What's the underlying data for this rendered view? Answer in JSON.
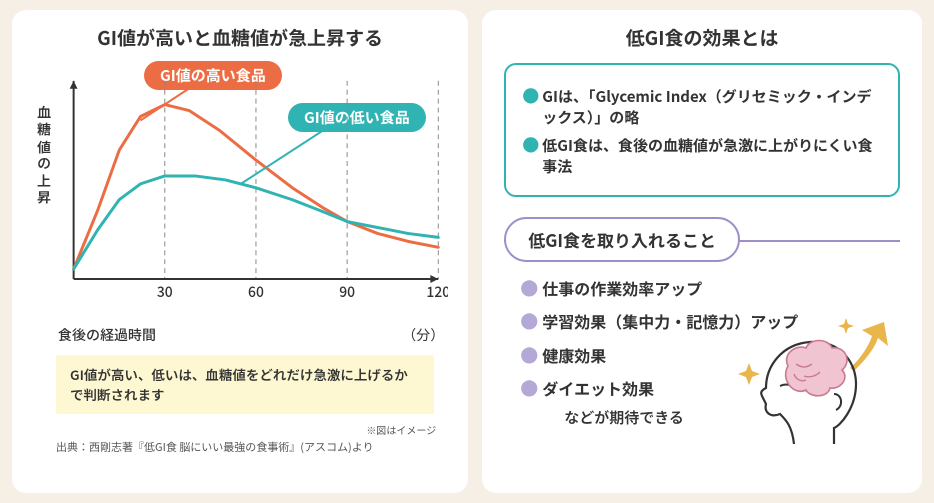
{
  "left": {
    "title": "GI値が高いと血糖値が急上昇する",
    "y_label": "血糖値の上昇",
    "x_label": "食後の経過時間",
    "x_unit": "（分）",
    "legend_high": "GI値の高い食品",
    "legend_low": "GI値の低い食品",
    "note": "GI値が高い、低いは、血糖値をどれだけ急激に上げるかで判断されます",
    "caption": "※図はイメージ",
    "source": "出典：西剛志著『低GI食 脳にいい最強の食事術』(アスコム)より",
    "chart": {
      "type": "line",
      "x_ticks": [
        30,
        60,
        90,
        120
      ],
      "x_range": [
        0,
        120
      ],
      "y_range": [
        0,
        100
      ],
      "grid_x": [
        30,
        60,
        90,
        120
      ],
      "grid_color": "#888888",
      "axis_color": "#333333",
      "background_color": "#ffffff",
      "series": [
        {
          "name": "high-gi",
          "color": "#ec6c44",
          "width": 3,
          "points": [
            [
              0,
              5
            ],
            [
              8,
              35
            ],
            [
              15,
              65
            ],
            [
              22,
              82
            ],
            [
              30,
              88
            ],
            [
              38,
              85
            ],
            [
              48,
              75
            ],
            [
              60,
              60
            ],
            [
              72,
              46
            ],
            [
              82,
              36
            ],
            [
              90,
              29
            ],
            [
              100,
              23
            ],
            [
              110,
              19
            ],
            [
              120,
              16
            ]
          ]
        },
        {
          "name": "low-gi",
          "color": "#2fb3b3",
          "width": 3,
          "points": [
            [
              0,
              5
            ],
            [
              8,
              25
            ],
            [
              15,
              40
            ],
            [
              22,
              48
            ],
            [
              30,
              52
            ],
            [
              40,
              52
            ],
            [
              50,
              50
            ],
            [
              60,
              46
            ],
            [
              72,
              40
            ],
            [
              82,
              34
            ],
            [
              90,
              29
            ],
            [
              100,
              26
            ],
            [
              110,
              23
            ],
            [
              120,
              21
            ]
          ]
        }
      ]
    }
  },
  "right": {
    "title": "低GI食の効果とは",
    "info": [
      "GIは、「Glycemic Index（グリセミック・インデックス）」の略",
      "低GI食は、食後の血糖値が急激に上がりにくい食事法"
    ],
    "subhead": "低GI食を取り入れること",
    "benefits": [
      "仕事の作業効率アップ",
      "学習効果（集中力・記憶力）アップ",
      "健康効果",
      "ダイエット効果"
    ],
    "tail": "などが期待できる",
    "colors": {
      "teal": "#2fb3b3",
      "orange": "#ec6c44",
      "violet": "#9e8fc9",
      "violet_light": "#b3a8d6",
      "brain": "#e9a6b8",
      "star": "#e8b64a"
    }
  }
}
